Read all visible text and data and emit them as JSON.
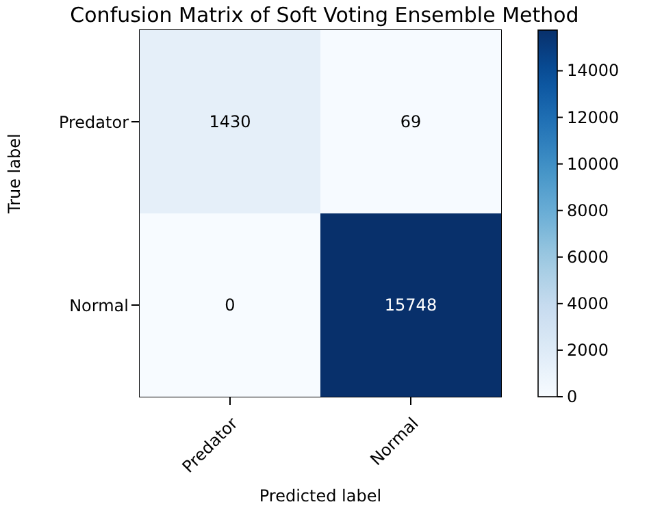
{
  "chart_data": {
    "type": "heatmap",
    "title": "Confusion Matrix of Soft Voting Ensemble Method",
    "xlabel": "Predicted label",
    "ylabel": "True label",
    "categories": [
      "Predator",
      "Normal"
    ],
    "y_categories": [
      "Predator",
      "Normal"
    ],
    "cells": [
      [
        1430,
        69
      ],
      [
        0,
        15748
      ]
    ],
    "data_labels": true,
    "clim": [
      0,
      15748
    ],
    "cticks": [
      0,
      2000,
      4000,
      6000,
      8000,
      10000,
      12000,
      14000
    ]
  }
}
